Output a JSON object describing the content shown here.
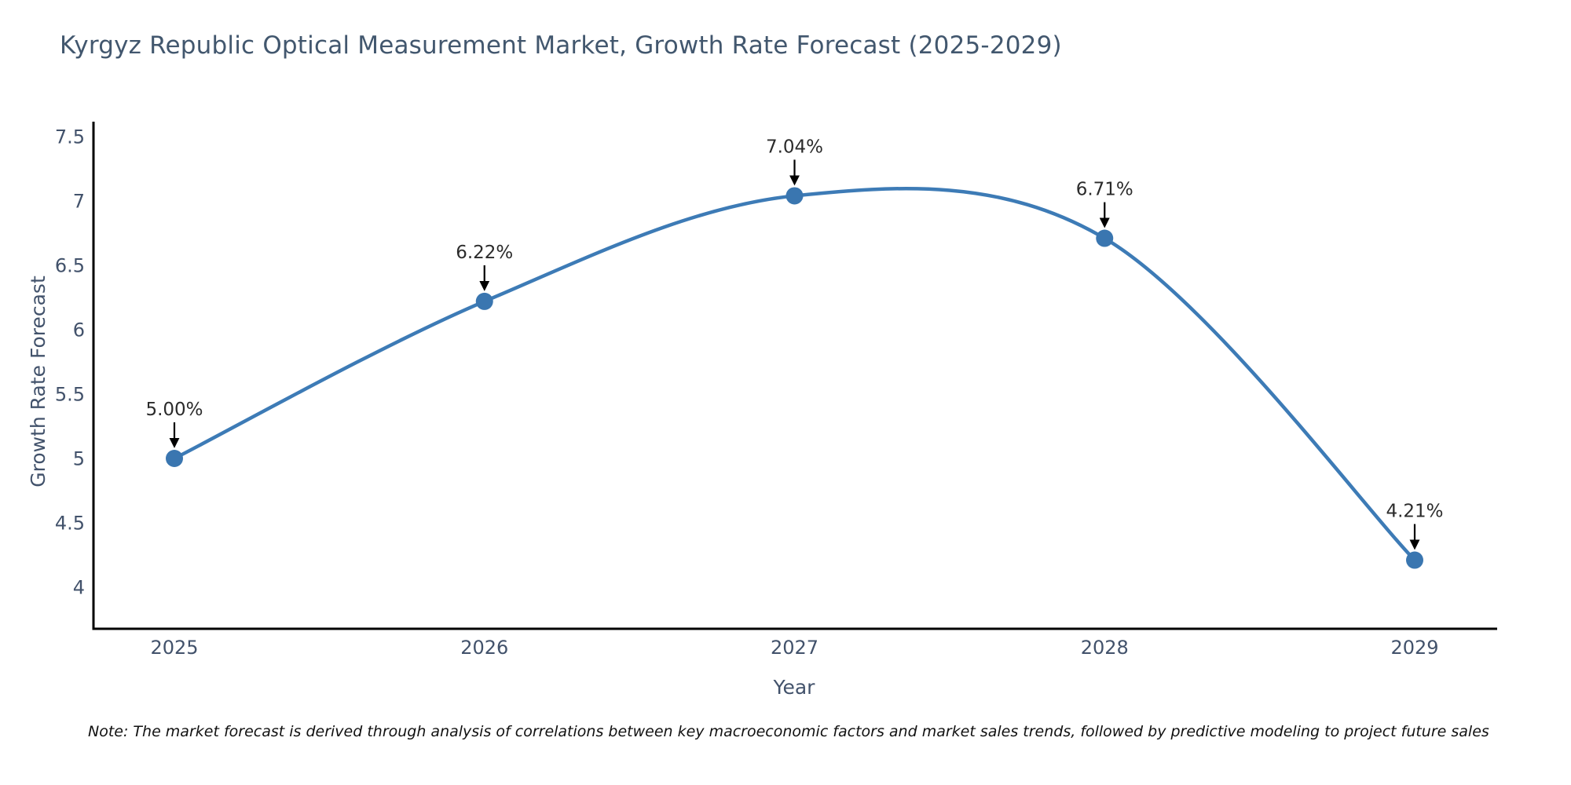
{
  "chart_data": {
    "type": "line",
    "title": "Kyrgyz Republic Optical Measurement Market, Growth Rate Forecast (2025-2029)",
    "xlabel": "Year",
    "ylabel": "Growth Rate Forecast",
    "x": [
      "2025",
      "2026",
      "2027",
      "2028",
      "2029"
    ],
    "values": [
      5.0,
      6.22,
      7.04,
      6.71,
      4.21
    ],
    "point_labels": [
      "5.00%",
      "6.22%",
      "7.04%",
      "6.71%",
      "4.21%"
    ],
    "yticks": [
      7.5,
      7,
      6.5,
      6,
      5.5,
      5,
      4.5,
      4
    ],
    "ylim": [
      3.67,
      7.62
    ],
    "grid": false,
    "legend": "none",
    "smooth": true,
    "line_color": "#3d7bb6",
    "marker_color": "#3a76b0",
    "annotation_text_color": "#2b2b2b",
    "annotation_arrow_color": "#000000",
    "axis_text_color": "#42526b",
    "title_color": "#42576e",
    "spine_color": "#000000"
  },
  "note": {
    "text": "Note: The market forecast is derived through analysis of correlations between key macroeconomic factors and market sales trends, followed by predictive modeling to project future sales"
  }
}
